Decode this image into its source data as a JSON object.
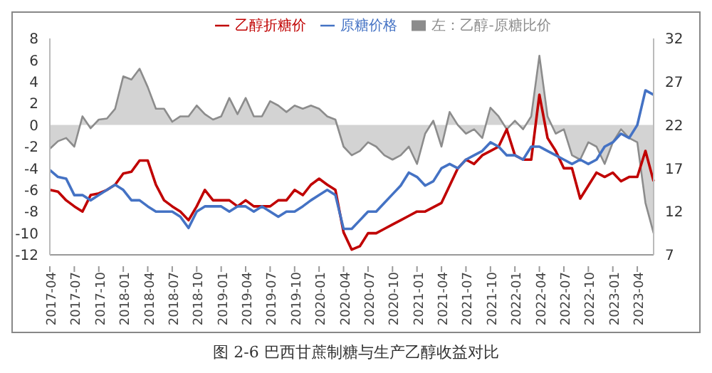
{
  "chart_data": {
    "type": "line",
    "title": "图 2-6 巴西甘蔗制糖与生产乙醇收益对比",
    "categories": [
      "2017-04",
      null,
      null,
      "2017-07",
      null,
      null,
      "2017-10",
      null,
      null,
      "2018-01",
      null,
      null,
      "2018-04",
      null,
      null,
      "2018-07",
      null,
      null,
      "2018-10",
      null,
      null,
      "2019-01",
      null,
      null,
      "2019-04",
      null,
      null,
      "2019-07",
      null,
      null,
      "2019-10",
      null,
      null,
      "2020-01",
      null,
      null,
      "2020-04",
      null,
      null,
      "2020-07",
      null,
      null,
      "2020-10",
      null,
      null,
      "2021-01",
      null,
      null,
      "2021-04",
      null,
      null,
      "2021-07",
      null,
      null,
      "2021-10",
      null,
      null,
      "2022-01",
      null,
      null,
      "2022-04",
      null,
      null,
      "2022-07",
      null,
      null,
      "2022-10",
      null,
      null,
      "2023-01",
      null,
      null,
      "2023-04",
      null,
      null
    ],
    "series": [
      {
        "name": "左：乙醇-原糖比价",
        "type": "area",
        "axis": "y",
        "color": "#8c8c8c",
        "values": [
          -2.2,
          -1.5,
          -1.2,
          -2,
          0.8,
          -0.3,
          0.5,
          0.6,
          1.5,
          4.5,
          4.2,
          5.2,
          3.5,
          1.5,
          1.5,
          0.3,
          0.8,
          0.8,
          1.8,
          1,
          0.5,
          0.8,
          2.5,
          1,
          2.5,
          0.8,
          0.8,
          2.2,
          1.8,
          1.2,
          1.8,
          1.5,
          1.8,
          1.5,
          0.8,
          0.5,
          -2,
          -2.8,
          -2.4,
          -1.6,
          -2,
          -2.8,
          -3.2,
          -2.8,
          -2,
          -3.6,
          -0.8,
          0.4,
          -2,
          1.2,
          0,
          -0.8,
          -0.4,
          -1.2,
          1.6,
          0.8,
          -0.4,
          0.4,
          -0.4,
          0.8,
          6.4,
          0.8,
          -0.8,
          -0.4,
          -2.8,
          -3.2,
          -1.6,
          -2,
          -3.6,
          -1.6,
          -0.4,
          -1.2,
          -1.6,
          -7.2,
          -10
        ]
      },
      {
        "name": "乙醇折糖价",
        "axis": "y2",
        "color": "#c00000",
        "values": [
          14.5,
          14.3,
          13.3,
          12.6,
          12,
          13.9,
          14.1,
          14.5,
          15.1,
          16.4,
          16.6,
          17.9,
          17.9,
          15.1,
          13.3,
          12.6,
          12,
          11,
          12.6,
          14.5,
          13.3,
          13.3,
          13.3,
          12.6,
          13.3,
          12.6,
          12.6,
          12.6,
          13.3,
          13.3,
          14.5,
          13.9,
          15.1,
          15.8,
          15.1,
          14.5,
          9.6,
          7.6,
          8,
          9.5,
          9.5,
          10,
          10.5,
          11,
          11.5,
          12,
          12,
          12.5,
          13,
          15,
          17,
          18,
          17.5,
          18.5,
          19,
          19.5,
          21.5,
          18.5,
          18,
          18,
          25.5,
          20.5,
          19,
          17,
          17,
          13.5,
          15,
          16.5,
          16,
          16.5,
          15.5,
          16,
          16,
          19,
          15.5
        ]
      },
      {
        "name": "原糖价格",
        "axis": "y2",
        "color": "#4472c4",
        "values": [
          16.8,
          16,
          15.8,
          13.9,
          13.9,
          13.3,
          13.9,
          14.5,
          15.1,
          14.5,
          13.3,
          13.3,
          12.6,
          12,
          12,
          12,
          11.4,
          10.1,
          12,
          12.6,
          12.6,
          12.6,
          12,
          12.6,
          12.6,
          12,
          12.6,
          12,
          11.4,
          12,
          12,
          12.6,
          13.3,
          13.9,
          14.5,
          13.9,
          10,
          10,
          11,
          12,
          12,
          13,
          14,
          15,
          16.5,
          16,
          15,
          15.5,
          17,
          17.5,
          17,
          18,
          18.5,
          19,
          20,
          19.5,
          18.5,
          18.5,
          18,
          19.5,
          19.5,
          19,
          18.5,
          18,
          17.5,
          18,
          17.5,
          18,
          19.5,
          20,
          21,
          20.5,
          22,
          26,
          25.5
        ]
      }
    ],
    "ylim": [
      -12,
      8
    ],
    "yticks": [
      -12,
      -10,
      -8,
      -6,
      -4,
      -2,
      0,
      2,
      4,
      6,
      8
    ],
    "y2lim": [
      7,
      32
    ],
    "y2ticks": [
      7,
      12,
      17,
      22,
      27,
      32
    ],
    "legend": "top",
    "grid": false,
    "marker": "none",
    "line_style": "solid"
  }
}
